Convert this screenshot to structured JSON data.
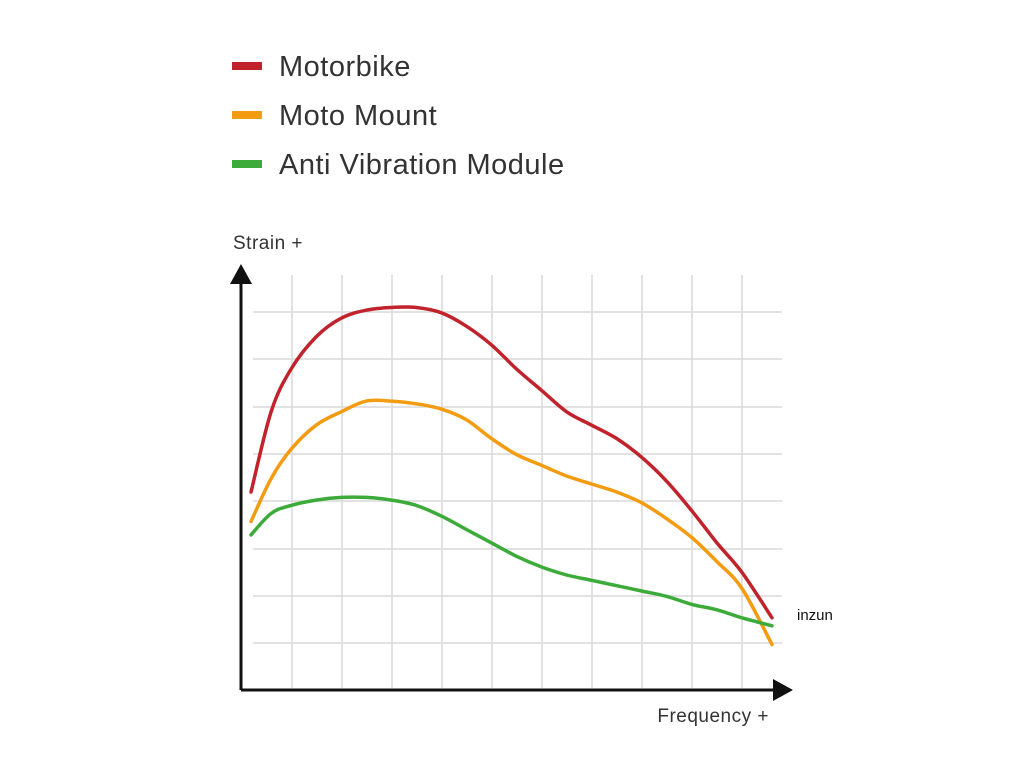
{
  "chart_data": {
    "type": "line",
    "title": "",
    "xlabel": "Frequency +",
    "ylabel": "Strain +",
    "xlim": [
      0,
      10.8
    ],
    "ylim": [
      0,
      8
    ],
    "grid": true,
    "legend_position": "top-left",
    "x": [
      0.2,
      0.6,
      1.0,
      1.5,
      2.0,
      2.5,
      3.0,
      3.5,
      4.0,
      4.5,
      5.0,
      5.5,
      6.0,
      6.5,
      7.0,
      7.5,
      8.0,
      8.5,
      9.0,
      9.5,
      10.0,
      10.6
    ],
    "series": [
      {
        "name": "Motorbike",
        "color": "#c0232c",
        "values": [
          3.7,
          5.2,
          6.0,
          6.6,
          6.95,
          7.1,
          7.15,
          7.15,
          7.05,
          6.8,
          6.45,
          6.0,
          5.6,
          5.2,
          4.95,
          4.7,
          4.35,
          3.9,
          3.35,
          2.75,
          2.2,
          1.35
        ]
      },
      {
        "name": "Moto Mount",
        "color": "#f39c12",
        "values": [
          3.15,
          3.95,
          4.5,
          4.95,
          5.2,
          5.4,
          5.4,
          5.35,
          5.25,
          5.05,
          4.7,
          4.4,
          4.2,
          4.0,
          3.85,
          3.7,
          3.5,
          3.2,
          2.85,
          2.4,
          1.9,
          0.85
        ]
      },
      {
        "name": "Anti Vibration Module",
        "color": "#3dab3a",
        "values": [
          2.9,
          3.3,
          3.45,
          3.55,
          3.6,
          3.6,
          3.55,
          3.45,
          3.25,
          3.0,
          2.75,
          2.5,
          2.3,
          2.15,
          2.05,
          1.95,
          1.85,
          1.75,
          1.6,
          1.5,
          1.35,
          1.2
        ]
      }
    ],
    "annotations": [
      "inzun"
    ]
  }
}
